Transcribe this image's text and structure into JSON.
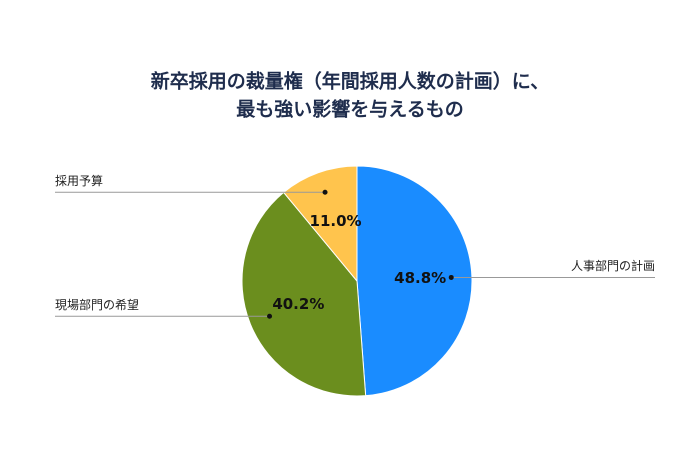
{
  "chart_data": {
    "type": "pie",
    "title": [
      "新卒採用の裁量権（年間採用人数の計画）に、",
      "最も強い影響を与えるもの"
    ],
    "categories": [
      "人事部門の計画",
      "現場部門の希望",
      "採用予算"
    ],
    "values": [
      48.8,
      40.2,
      11.0
    ],
    "value_labels": [
      "48.8%",
      "40.2%",
      "11.0%"
    ],
    "colors": [
      "#1a8cff",
      "#6b8e1e",
      "#ffc44d"
    ]
  }
}
